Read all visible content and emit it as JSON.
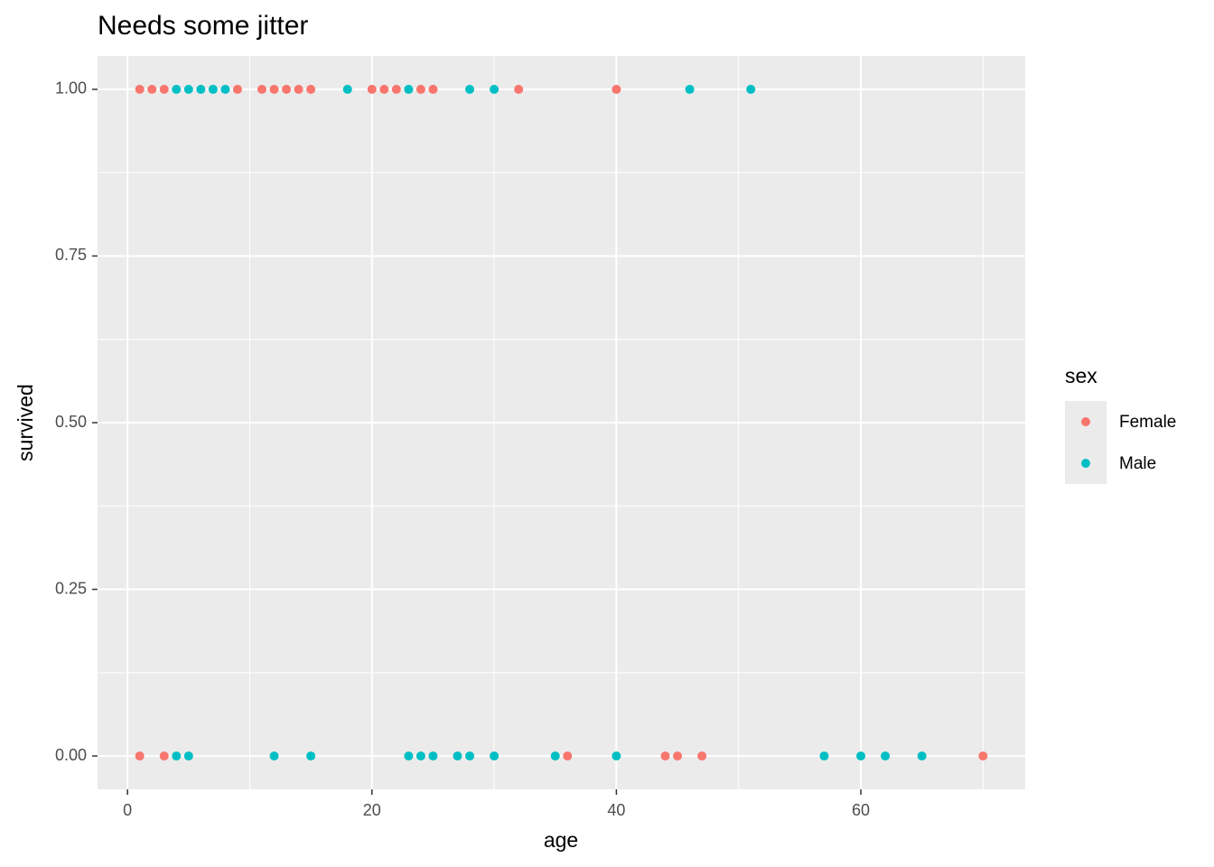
{
  "chart_data": {
    "type": "scatter",
    "title": "Needs some jitter",
    "x_label": "age",
    "y_label": "survived",
    "legend_title": "sex",
    "legend_position": "right",
    "xlim": [
      -2.45,
      73.45
    ],
    "ylim": [
      -0.05,
      1.05
    ],
    "xticks": [
      0,
      20,
      40,
      60
    ],
    "yticks": [
      {
        "value": 0,
        "label": "0.00"
      },
      {
        "value": 0.25,
        "label": "0.25"
      },
      {
        "value": 0.5,
        "label": "0.50"
      },
      {
        "value": 0.75,
        "label": "0.75"
      },
      {
        "value": 1,
        "label": "1.00"
      }
    ],
    "minor_xticks": [
      10,
      30,
      50,
      70
    ],
    "minor_yticks": [
      0.125,
      0.375,
      0.625,
      0.875
    ],
    "grid": true,
    "panel_color": "#ebebeb",
    "series": [
      {
        "name": "Female",
        "color": "#F8766D",
        "x": [
          1,
          2,
          3,
          9,
          11,
          12,
          13,
          14,
          15,
          20,
          21,
          22,
          24,
          25,
          32,
          40,
          1,
          3,
          36,
          44,
          45,
          47,
          70
        ],
        "values": [
          1,
          1,
          1,
          1,
          1,
          1,
          1,
          1,
          1,
          1,
          1,
          1,
          1,
          1,
          1,
          1,
          0,
          0,
          0,
          0,
          0,
          0,
          0
        ]
      },
      {
        "name": "Male",
        "color": "#00BFC4",
        "x": [
          4,
          5,
          6,
          7,
          8,
          18,
          23,
          28,
          30,
          46,
          51,
          4,
          5,
          12,
          15,
          23,
          24,
          25,
          27,
          28,
          30,
          35,
          40,
          57,
          60,
          62,
          65
        ],
        "values": [
          1,
          1,
          1,
          1,
          1,
          1,
          1,
          1,
          1,
          1,
          1,
          0,
          0,
          0,
          0,
          0,
          0,
          0,
          0,
          0,
          0,
          0,
          0,
          0,
          0,
          0,
          0
        ]
      }
    ]
  }
}
